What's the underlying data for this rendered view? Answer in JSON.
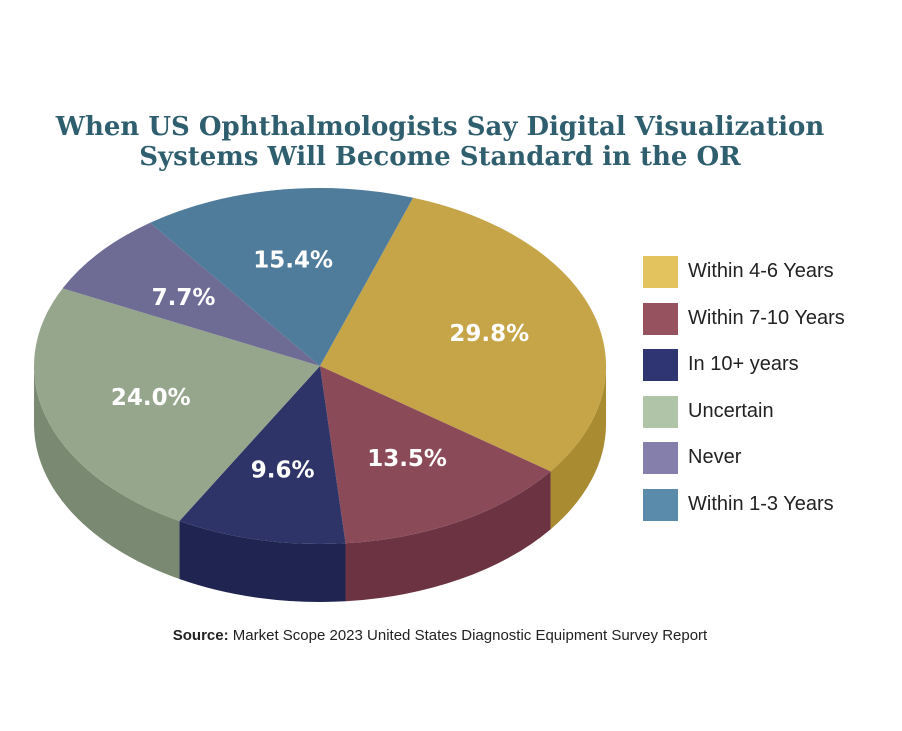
{
  "chart_data": {
    "type": "pie",
    "title_line1": "When US Ophthalmologists Say Digital Visualization",
    "title_line2": "Systems Will Become Standard in the OR",
    "slices": [
      {
        "name": "Within 4-6 Years",
        "value": 29.8,
        "label": "29.8%",
        "color": "#c5a548",
        "side": "#a98b32"
      },
      {
        "name": "Within 7-10 Years",
        "value": 13.5,
        "label": "13.5%",
        "color": "#8b4a58",
        "side": "#6c3442"
      },
      {
        "name": "In 10+ years",
        "value": 9.6,
        "label": "9.6%",
        "color": "#2e3468",
        "side": "#1f2450"
      },
      {
        "name": "Uncertain",
        "value": 24.0,
        "label": "24.0%",
        "color": "#96a68c",
        "side": "#7a8a72"
      },
      {
        "name": "Never",
        "value": 7.7,
        "label": "7.7%",
        "color": "#6e6c95",
        "side": "#55537a"
      },
      {
        "name": "Within 1-3 Years",
        "value": 15.4,
        "label": "15.4%",
        "color": "#4f7c9b",
        "side": "#3b6380"
      }
    ],
    "legend_placement": "right",
    "legend": [
      {
        "label": "Within 4-6 Years",
        "color": "#e2c35e"
      },
      {
        "label": "Within 7-10 Years",
        "color": "#97525f"
      },
      {
        "label": "In 10+ years",
        "color": "#2f3572"
      },
      {
        "label": "Uncertain",
        "color": "#b0c4a8"
      },
      {
        "label": "Never",
        "color": "#8480ab"
      },
      {
        "label": "Within 1-3 Years",
        "color": "#5b8bab"
      }
    ]
  },
  "source": {
    "prefix": "Source:",
    "text": " Market Scope 2023 United States Diagnostic Equipment Survey Report"
  }
}
